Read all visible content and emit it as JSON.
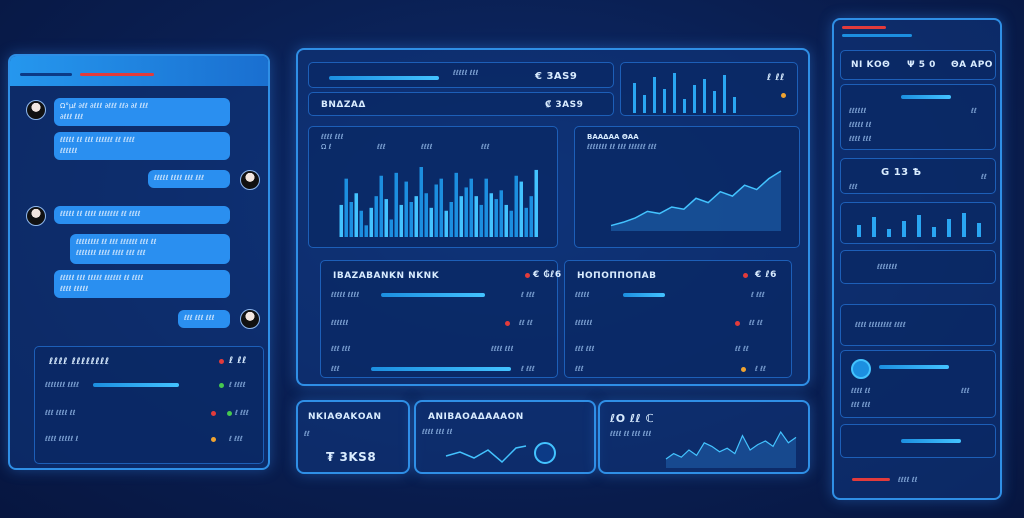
{
  "chat": {
    "messages": [
      {
        "side": "left",
        "text": "Ω°μℓ ∂ℓℓ ∂ℓℓℓ ∂ℓℓℓ ℓℓ∂ ∂ℓ ℓℓℓ\n∂ℓℓℓ ℓℓℓ"
      },
      {
        "side": "left",
        "text": "ℓℓℓℓℓ ℓℓ ℓℓℓ ℓℓℓℓℓℓ ℓℓ ℓℓℓℓ\nℓℓℓℓℓℓ"
      },
      {
        "side": "right",
        "text": "ℓℓℓℓℓ ℓℓℓℓ ℓℓℓ ℓℓℓ"
      },
      {
        "side": "left",
        "text": "ℓℓℓℓℓ ℓℓ ℓℓℓℓ ℓℓℓℓℓℓℓ ℓℓ ℓℓℓℓ"
      },
      {
        "side": "right",
        "text": "ℓℓℓℓℓℓℓℓ ℓℓ ℓℓℓ ℓℓℓℓℓℓ ℓℓℓ ℓℓ\nℓℓℓℓℓℓℓ ℓℓℓℓ ℓℓℓℓ ℓℓℓ ℓℓℓ"
      },
      {
        "side": "left",
        "text": "ℓℓℓℓℓ ℓℓℓ ℓℓℓℓℓ ℓℓℓℓℓℓ ℓℓ ℓℓℓℓ\nℓℓℓℓ ℓℓℓℓℓ"
      },
      {
        "side": "right",
        "text": "ℓℓℓ ℓℓℓ ℓℓℓ"
      }
    ],
    "stats_title": "ℓℓℓℓ ℓℓℓℓℓℓℓℓ",
    "stats_value": "ℓ ℓℓ",
    "rows": [
      "ℓℓℓℓℓℓℓ ℓℓℓℓ",
      "ℓℓℓ ℓℓℓℓ ℓℓ",
      "ℓℓℓℓ ℓℓℓℓℓ ℓ"
    ],
    "row_values": [
      "ℓ ℓℓℓℓ",
      "ℓ ℓℓℓ",
      "ℓ ℓℓℓ"
    ]
  },
  "center": {
    "top_value": "€ 3ΑЅ9",
    "top_sub": "₡ 3ΑЅ9",
    "mid_label": "ΒΝΔΖΑΔ",
    "chart1": {
      "title": "ℓℓℓℓ ℓℓℓ",
      "legend": [
        "Ω ℓ",
        "ℓℓℓ",
        "ℓℓℓℓ",
        "ℓℓℓ"
      ]
    },
    "chart2": {
      "title": "ΒΑΑΔΑΑ ΘΑΑ",
      "sub": "ℓℓℓℓℓℓℓ ℓℓ ℓℓℓ ℓℓℓℓℓℓ ℓℓℓ"
    },
    "table1": {
      "title": "ΙΒΑΖΑΒΑΝΚΝ ΝΚΝΚ",
      "value": "€ ₲ℓ6"
    },
    "table2": {
      "title": "ΗΟΠΟΠΠΟΠΑΒ",
      "value": "€ ℓ6"
    }
  },
  "right": {
    "header": [
      "ΝΙ ΚΟΘ",
      "Ψ 5 0",
      "ΘΑ ΑΡΟ"
    ],
    "value_g": "G 13 Ѣ",
    "list_label": "ℓℓℓℓ ℓℓℓℓℓℓℓℓ ℓℓℓℓ"
  },
  "bottom": {
    "card1_title": "ΝΚΙΑΘΑΚΟΑΝ",
    "card1_sub": "ℓℓ",
    "card1_value": "₮ 3ΚЅ8",
    "card2_title": "ΑΝΙΒΑΟΑΔΑΑΑΟΝ",
    "card2_sub": "ℓℓℓℓ ℓℓℓ ℓℓ",
    "card3_title": "ℓΟ ℓℓ ℂ",
    "card3_sub": "ℓℓℓℓ ℓℓ ℓℓℓ ℓℓℓ"
  },
  "chart_data": [
    {
      "type": "bar",
      "values": [
        22,
        40,
        24,
        30,
        18,
        8,
        20,
        28,
        42,
        26,
        12,
        44,
        22,
        38,
        24,
        28,
        48,
        30,
        20,
        36,
        40,
        18,
        24,
        44,
        28,
        34,
        40,
        28,
        22,
        40,
        30,
        26,
        32,
        22,
        18,
        42,
        38,
        20,
        28,
        46
      ]
    },
    {
      "type": "area",
      "values": [
        5,
        8,
        12,
        18,
        16,
        22,
        20,
        30,
        26,
        36,
        32,
        42,
        38,
        48,
        55
      ]
    },
    {
      "type": "line",
      "values": [
        10,
        16,
        12,
        20,
        14,
        28,
        24,
        18,
        22,
        16,
        36,
        20,
        26,
        30,
        24,
        40,
        28,
        34
      ]
    }
  ],
  "colors": {
    "accent": "#2f8fe6",
    "glow": "#43c3ff",
    "bg": "#0a1f52",
    "red": "#e23b3b",
    "green": "#46c84f",
    "orange": "#f0a330"
  }
}
